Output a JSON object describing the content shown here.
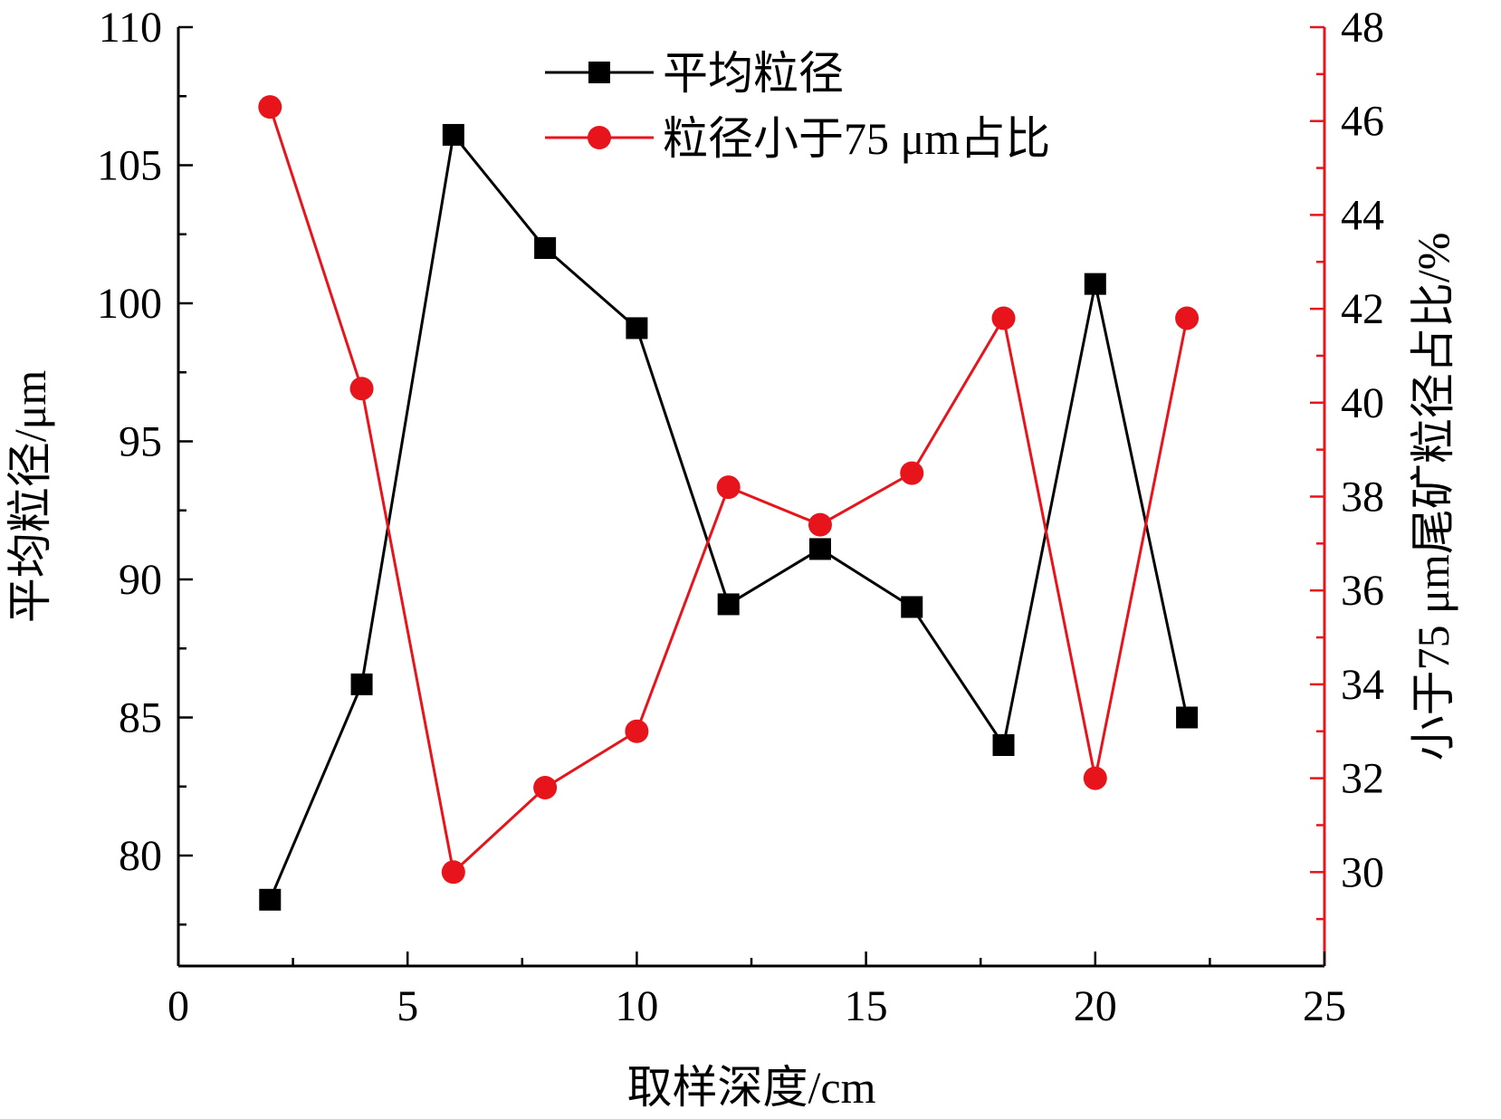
{
  "chart_data": {
    "type": "line",
    "title": "",
    "xlabel": "取样深度/cm",
    "ylabel_left": "平均粒径/μm",
    "ylabel_right": "小于75 μm尾矿粒径占比/%",
    "xlim": [
      0,
      25
    ],
    "ylim_left": [
      76,
      110
    ],
    "ylim_right": [
      28,
      48
    ],
    "x_ticks": [
      "0",
      "5",
      "10",
      "15",
      "20",
      "25"
    ],
    "y_left_ticks": [
      "80",
      "85",
      "90",
      "95",
      "100",
      "105",
      "110"
    ],
    "y_right_ticks": [
      "30",
      "32",
      "34",
      "36",
      "38",
      "40",
      "42",
      "44",
      "46",
      "48"
    ],
    "grid": false,
    "legend_position": "top-center",
    "x": [
      2,
      4,
      6,
      8,
      10,
      12,
      14,
      16,
      18,
      20,
      22
    ],
    "series": [
      {
        "name": "平均粒径",
        "axis": "left",
        "marker": "square",
        "color": "#000000",
        "values": [
          78.4,
          86.2,
          106.1,
          102.0,
          99.1,
          89.1,
          91.1,
          89.0,
          84.0,
          100.7,
          85.0
        ]
      },
      {
        "name": "粒径小于75 μm占比",
        "axis": "right",
        "marker": "circle",
        "color": "#e8141b",
        "values": [
          46.3,
          40.3,
          30.0,
          31.8,
          33.0,
          38.2,
          37.4,
          38.5,
          41.8,
          32.0,
          41.8
        ]
      }
    ]
  }
}
